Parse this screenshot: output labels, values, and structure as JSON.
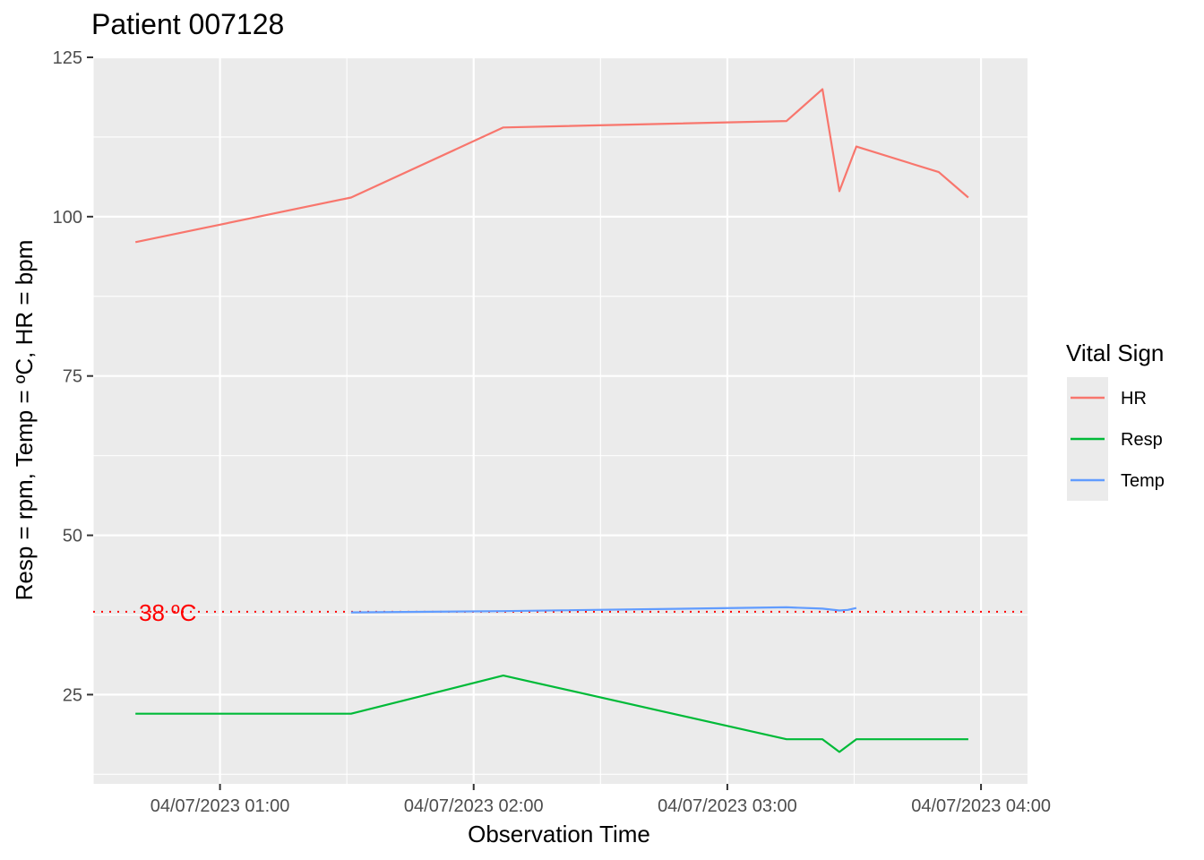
{
  "chart_data": {
    "type": "line",
    "title": "Patient 007128",
    "xlabel": "Observation Time",
    "ylabel": "Resp = rpm,  Temp = ºC,  HR = bpm",
    "ylim": [
      11,
      125
    ],
    "yticks": [
      25,
      50,
      75,
      100,
      125
    ],
    "xticks": [
      {
        "label": "04/07/2023 01:00",
        "t": 60
      },
      {
        "label": "04/07/2023 02:00",
        "t": 120
      },
      {
        "label": "04/07/2023 03:00",
        "t": 180
      },
      {
        "label": "04/07/2023 04:00",
        "t": 240
      }
    ],
    "xlim": [
      30,
      251
    ],
    "grid": true,
    "legend": {
      "title": "Vital Sign",
      "position": "right"
    },
    "reference_line": {
      "y": 38,
      "label": "38 ºC",
      "color": "#FF0000",
      "style": "dotted"
    },
    "series": [
      {
        "name": "HR",
        "color": "#F8766D",
        "points": [
          [
            40,
            96
          ],
          [
            91,
            103
          ],
          [
            127,
            114
          ],
          [
            194,
            115
          ],
          [
            202.5,
            120
          ],
          [
            206.5,
            104
          ],
          [
            210.5,
            111
          ],
          [
            230,
            107
          ],
          [
            237,
            103
          ]
        ]
      },
      {
        "name": "Resp",
        "color": "#00BA38",
        "points": [
          [
            40,
            22
          ],
          [
            91,
            22
          ],
          [
            127,
            28
          ],
          [
            194,
            18
          ],
          [
            202.5,
            18
          ],
          [
            206.5,
            16
          ],
          [
            210.5,
            18
          ],
          [
            237,
            18
          ]
        ]
      },
      {
        "name": "Temp",
        "color": "#619CFF",
        "points": [
          [
            91,
            37.9
          ],
          [
            127,
            38.1
          ],
          [
            194,
            38.7
          ],
          [
            202.5,
            38.5
          ],
          [
            206.5,
            38.2
          ],
          [
            208.5,
            38.3
          ],
          [
            210.5,
            38.6
          ]
        ]
      }
    ]
  }
}
